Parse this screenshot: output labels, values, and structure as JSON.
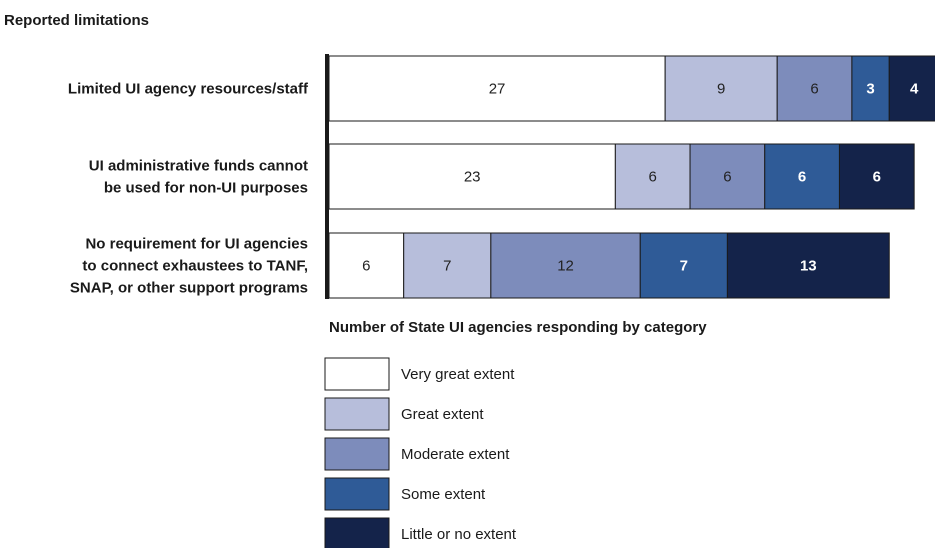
{
  "chart_data": {
    "type": "bar",
    "orientation": "horizontal",
    "stacked": true,
    "title": "Reported limitations",
    "xlabel": "Number of State UI agencies responding by category",
    "ylabel": "",
    "grid": false,
    "legend_position": "bottom",
    "categories": [
      [
        "Limited UI agency resources/staff"
      ],
      [
        "UI administrative funds cannot",
        "be used for non-UI purposes"
      ],
      [
        "No requirement for UI agencies",
        "to connect exhaustees to TANF,",
        "SNAP, or other support programs"
      ]
    ],
    "series": [
      {
        "name": "Very great extent",
        "color": "#ffffff",
        "label_color": "#222222",
        "values": [
          27,
          23,
          6
        ]
      },
      {
        "name": "Great extent",
        "color": "#b7bedb",
        "label_color": "#222222",
        "values": [
          9,
          6,
          7
        ]
      },
      {
        "name": "Moderate extent",
        "color": "#7d8cbb",
        "label_color": "#222222",
        "values": [
          6,
          6,
          12
        ]
      },
      {
        "name": "Some extent",
        "color": "#2f5b97",
        "label_color": "#ffffff",
        "values": [
          3,
          6,
          7
        ]
      },
      {
        "name": "Little or no extent",
        "color": "#14234a",
        "label_color": "#ffffff",
        "values": [
          4,
          6,
          13
        ]
      }
    ]
  }
}
